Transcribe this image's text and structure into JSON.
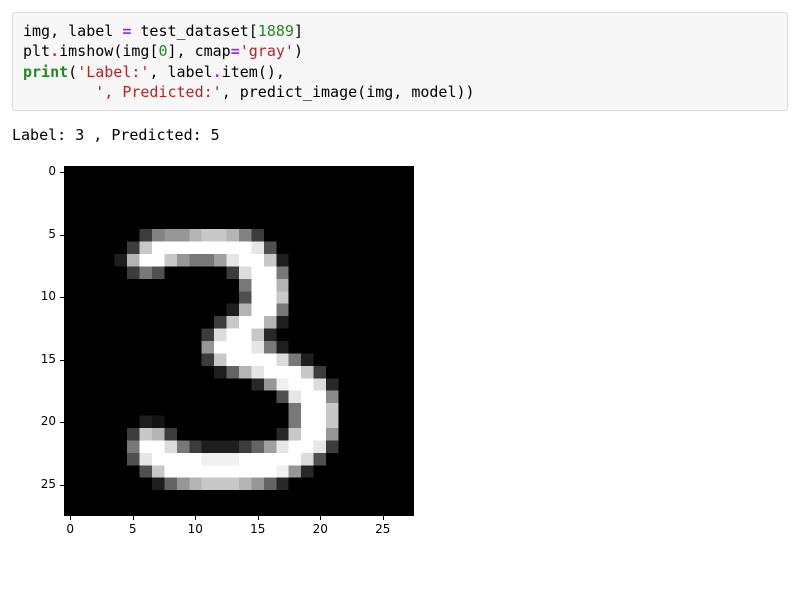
{
  "code": {
    "line1": {
      "v1": "img",
      "v2": " label ",
      "v3": " test_dataset",
      "eq": "=",
      "comma": ",",
      "lbr": "[",
      "rbr": "]",
      "idx": "1889"
    },
    "line2": {
      "plt": "plt",
      "dot": ".",
      "imshow": "imshow",
      "lp": "(",
      "rp": ")",
      "img": "img",
      "lbr": "[",
      "z": "0",
      "rbr": "]",
      "comma": ", ",
      "cmap": "cmap",
      "eq": "=",
      "gray": "'gray'"
    },
    "line3": {
      "print": "print",
      "lp": "(",
      "rp": ")",
      "labelstr": "'Label:'",
      "comma": ", ",
      "label": "label",
      "dot": ".",
      "item": "item",
      "lp2": "(",
      "rp2": ")",
      "comma2": ","
    },
    "line4": {
      "indent": "        ",
      "predstr": "', Predicted:'",
      "comma": ", ",
      "predict": "predict_image",
      "lp": "(",
      "img": "img",
      "c": ", ",
      "model": "model",
      "rp": ")",
      "rp2": ")"
    }
  },
  "output": {
    "text": "Label: 3 , Predicted: 5"
  },
  "plot": {
    "type": "heatmap",
    "cmap": "gray",
    "extent": [
      -0.5,
      27.5,
      27.5,
      -0.5
    ],
    "xticks": [
      0,
      5,
      10,
      15,
      20,
      25
    ],
    "yticks": [
      0,
      5,
      10,
      15,
      20,
      25
    ],
    "tick_fontsize": 12,
    "background_color": "#ffffff",
    "nrows": 28,
    "ncols": 28,
    "vmin": 0,
    "vmax": 255,
    "data": [
      [
        0,
        0,
        0,
        0,
        0,
        0,
        0,
        0,
        0,
        0,
        0,
        0,
        0,
        0,
        0,
        0,
        0,
        0,
        0,
        0,
        0,
        0,
        0,
        0,
        0,
        0,
        0,
        0
      ],
      [
        0,
        0,
        0,
        0,
        0,
        0,
        0,
        0,
        0,
        0,
        0,
        0,
        0,
        0,
        0,
        0,
        0,
        0,
        0,
        0,
        0,
        0,
        0,
        0,
        0,
        0,
        0,
        0
      ],
      [
        0,
        0,
        0,
        0,
        0,
        0,
        0,
        0,
        0,
        0,
        0,
        0,
        0,
        0,
        0,
        0,
        0,
        0,
        0,
        0,
        0,
        0,
        0,
        0,
        0,
        0,
        0,
        0
      ],
      [
        0,
        0,
        0,
        0,
        0,
        0,
        0,
        0,
        0,
        0,
        0,
        0,
        0,
        0,
        0,
        0,
        0,
        0,
        0,
        0,
        0,
        0,
        0,
        0,
        0,
        0,
        0,
        0
      ],
      [
        0,
        0,
        0,
        0,
        0,
        0,
        0,
        0,
        0,
        0,
        0,
        0,
        0,
        0,
        0,
        0,
        0,
        0,
        0,
        0,
        0,
        0,
        0,
        0,
        0,
        0,
        0,
        0
      ],
      [
        0,
        0,
        0,
        0,
        0,
        0,
        60,
        130,
        150,
        150,
        180,
        200,
        200,
        180,
        130,
        60,
        0,
        0,
        0,
        0,
        0,
        0,
        0,
        0,
        0,
        0,
        0,
        0
      ],
      [
        0,
        0,
        0,
        0,
        0,
        60,
        200,
        255,
        255,
        255,
        255,
        255,
        255,
        255,
        255,
        230,
        80,
        0,
        0,
        0,
        0,
        0,
        0,
        0,
        0,
        0,
        0,
        0
      ],
      [
        0,
        0,
        0,
        0,
        30,
        180,
        255,
        255,
        200,
        150,
        120,
        120,
        160,
        230,
        255,
        255,
        200,
        30,
        0,
        0,
        0,
        0,
        0,
        0,
        0,
        0,
        0,
        0
      ],
      [
        0,
        0,
        0,
        0,
        0,
        60,
        120,
        80,
        0,
        0,
        0,
        0,
        0,
        60,
        220,
        255,
        255,
        120,
        0,
        0,
        0,
        0,
        0,
        0,
        0,
        0,
        0,
        0
      ],
      [
        0,
        0,
        0,
        0,
        0,
        0,
        0,
        0,
        0,
        0,
        0,
        0,
        0,
        0,
        120,
        255,
        255,
        180,
        0,
        0,
        0,
        0,
        0,
        0,
        0,
        0,
        0,
        0
      ],
      [
        0,
        0,
        0,
        0,
        0,
        0,
        0,
        0,
        0,
        0,
        0,
        0,
        0,
        0,
        80,
        255,
        255,
        200,
        0,
        0,
        0,
        0,
        0,
        0,
        0,
        0,
        0,
        0
      ],
      [
        0,
        0,
        0,
        0,
        0,
        0,
        0,
        0,
        0,
        0,
        0,
        0,
        0,
        30,
        180,
        255,
        255,
        120,
        0,
        0,
        0,
        0,
        0,
        0,
        0,
        0,
        0,
        0
      ],
      [
        0,
        0,
        0,
        0,
        0,
        0,
        0,
        0,
        0,
        0,
        0,
        0,
        60,
        200,
        255,
        255,
        180,
        30,
        0,
        0,
        0,
        0,
        0,
        0,
        0,
        0,
        0,
        0
      ],
      [
        0,
        0,
        0,
        0,
        0,
        0,
        0,
        0,
        0,
        0,
        0,
        60,
        220,
        255,
        255,
        200,
        40,
        0,
        0,
        0,
        0,
        0,
        0,
        0,
        0,
        0,
        0,
        0
      ],
      [
        0,
        0,
        0,
        0,
        0,
        0,
        0,
        0,
        0,
        0,
        0,
        150,
        255,
        255,
        255,
        230,
        120,
        30,
        0,
        0,
        0,
        0,
        0,
        0,
        0,
        0,
        0,
        0
      ],
      [
        0,
        0,
        0,
        0,
        0,
        0,
        0,
        0,
        0,
        0,
        0,
        60,
        200,
        255,
        255,
        255,
        255,
        220,
        120,
        30,
        0,
        0,
        0,
        0,
        0,
        0,
        0,
        0
      ],
      [
        0,
        0,
        0,
        0,
        0,
        0,
        0,
        0,
        0,
        0,
        0,
        0,
        30,
        100,
        180,
        230,
        255,
        255,
        255,
        200,
        60,
        0,
        0,
        0,
        0,
        0,
        0,
        0
      ],
      [
        0,
        0,
        0,
        0,
        0,
        0,
        0,
        0,
        0,
        0,
        0,
        0,
        0,
        0,
        0,
        40,
        150,
        240,
        255,
        255,
        220,
        40,
        0,
        0,
        0,
        0,
        0,
        0
      ],
      [
        0,
        0,
        0,
        0,
        0,
        0,
        0,
        0,
        0,
        0,
        0,
        0,
        0,
        0,
        0,
        0,
        0,
        80,
        230,
        255,
        255,
        140,
        0,
        0,
        0,
        0,
        0,
        0
      ],
      [
        0,
        0,
        0,
        0,
        0,
        0,
        0,
        0,
        0,
        0,
        0,
        0,
        0,
        0,
        0,
        0,
        0,
        0,
        120,
        255,
        255,
        200,
        0,
        0,
        0,
        0,
        0,
        0
      ],
      [
        0,
        0,
        0,
        0,
        0,
        0,
        30,
        20,
        0,
        0,
        0,
        0,
        0,
        0,
        0,
        0,
        0,
        0,
        120,
        255,
        255,
        200,
        0,
        0,
        0,
        0,
        0,
        0
      ],
      [
        0,
        0,
        0,
        0,
        0,
        60,
        200,
        180,
        60,
        0,
        0,
        0,
        0,
        0,
        0,
        0,
        0,
        40,
        200,
        255,
        255,
        150,
        0,
        0,
        0,
        0,
        0,
        0
      ],
      [
        0,
        0,
        0,
        0,
        0,
        120,
        255,
        255,
        220,
        120,
        60,
        30,
        30,
        30,
        60,
        100,
        160,
        230,
        255,
        255,
        230,
        60,
        0,
        0,
        0,
        0,
        0,
        0
      ],
      [
        0,
        0,
        0,
        0,
        0,
        80,
        230,
        255,
        255,
        255,
        255,
        240,
        240,
        240,
        255,
        255,
        255,
        255,
        255,
        220,
        80,
        0,
        0,
        0,
        0,
        0,
        0,
        0
      ],
      [
        0,
        0,
        0,
        0,
        0,
        0,
        80,
        200,
        255,
        255,
        255,
        255,
        255,
        255,
        255,
        255,
        255,
        240,
        150,
        40,
        0,
        0,
        0,
        0,
        0,
        0,
        0,
        0
      ],
      [
        0,
        0,
        0,
        0,
        0,
        0,
        0,
        30,
        100,
        150,
        180,
        200,
        200,
        200,
        180,
        150,
        100,
        40,
        0,
        0,
        0,
        0,
        0,
        0,
        0,
        0,
        0,
        0
      ],
      [
        0,
        0,
        0,
        0,
        0,
        0,
        0,
        0,
        0,
        0,
        0,
        0,
        0,
        0,
        0,
        0,
        0,
        0,
        0,
        0,
        0,
        0,
        0,
        0,
        0,
        0,
        0,
        0
      ],
      [
        0,
        0,
        0,
        0,
        0,
        0,
        0,
        0,
        0,
        0,
        0,
        0,
        0,
        0,
        0,
        0,
        0,
        0,
        0,
        0,
        0,
        0,
        0,
        0,
        0,
        0,
        0,
        0
      ]
    ]
  }
}
